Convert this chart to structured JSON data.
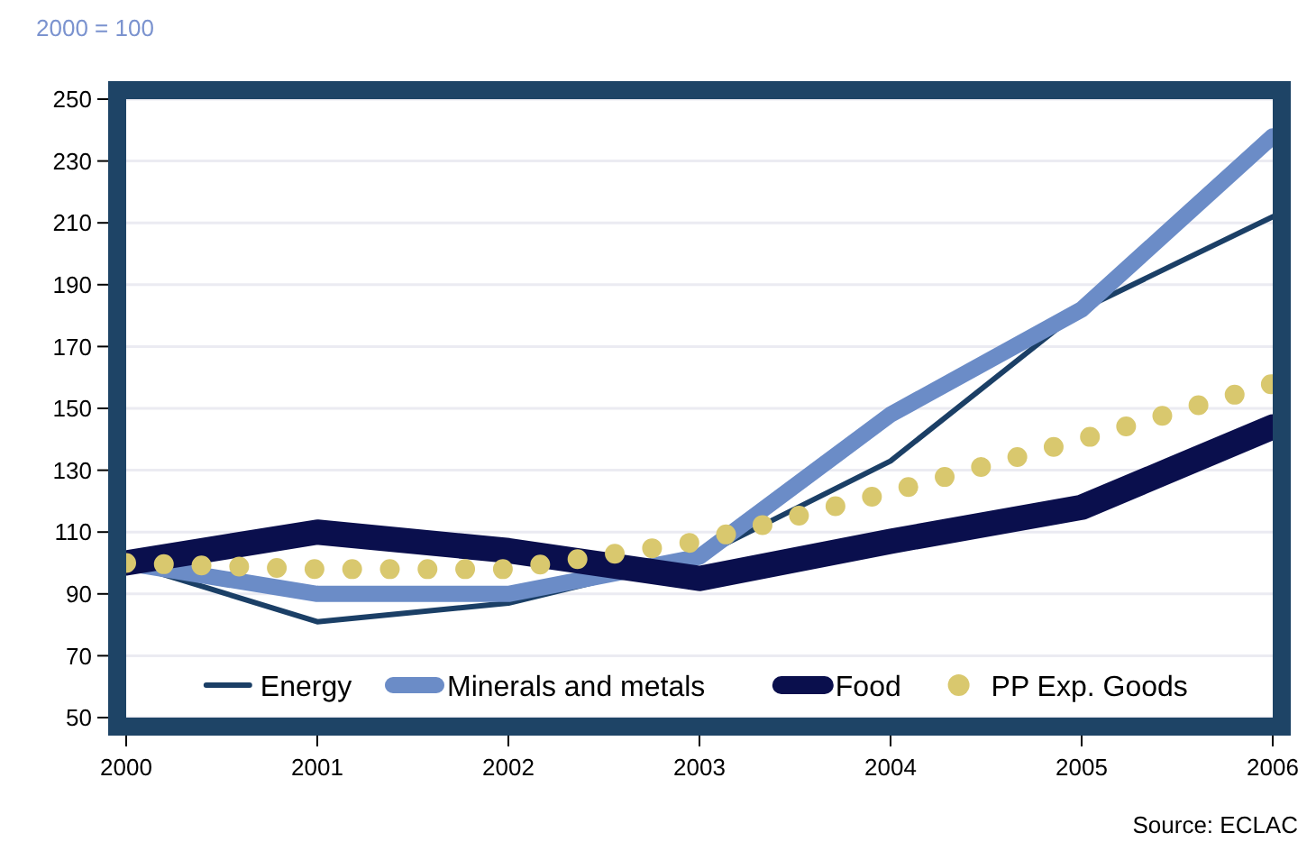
{
  "chart_data": {
    "type": "line",
    "subtitle": "2000 = 100",
    "annotations": [
      "Source: ECLAC"
    ],
    "x": [
      2000,
      2001,
      2002,
      2003,
      2004,
      2005,
      2006
    ],
    "xlim": [
      2000,
      2006
    ],
    "xticks": [
      2000,
      2001,
      2002,
      2003,
      2004,
      2005,
      2006
    ],
    "ylim": [
      50,
      250
    ],
    "yticks": [
      50,
      70,
      90,
      110,
      130,
      150,
      170,
      190,
      210,
      230,
      250
    ],
    "grid": "y",
    "legend": "bottom",
    "marker": "none",
    "series": [
      {
        "name": "Energy",
        "color": "#1b3f66",
        "values": [
          100,
          81,
          87,
          102,
          133,
          182,
          212
        ],
        "line_style": "solid"
      },
      {
        "name": "Minerals and metals",
        "color": "#6b8cc7",
        "values": [
          100,
          90,
          90,
          102,
          148,
          182,
          238
        ],
        "line_style": "solid"
      },
      {
        "name": "Food",
        "color": "#0a0f4d",
        "values": [
          100,
          110,
          104,
          95,
          107,
          118,
          144
        ],
        "line_style": "solid"
      },
      {
        "name": "PP Exp. Goods",
        "color": "#d9c86e",
        "values": [
          100,
          98,
          98,
          107,
          123,
          140,
          158
        ],
        "line_style": "dotted"
      }
    ]
  }
}
